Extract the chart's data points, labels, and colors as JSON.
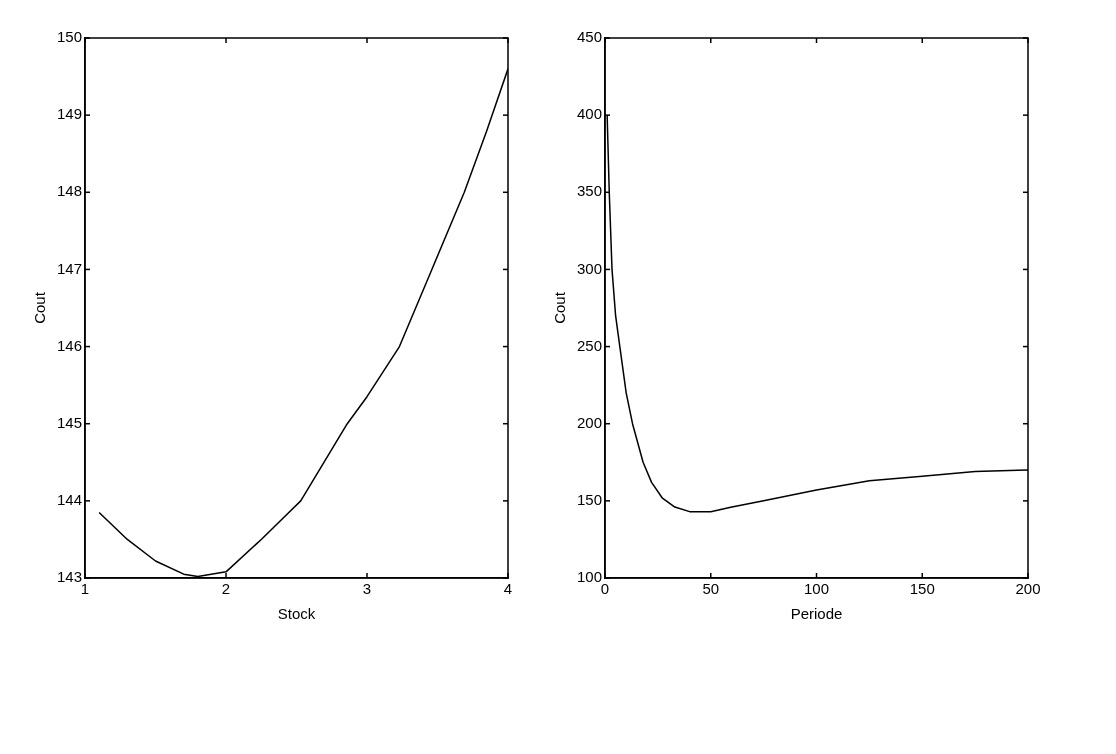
{
  "chart_data": [
    {
      "type": "line",
      "xlabel": "Stock",
      "ylabel": "Cout",
      "xlim": [
        1,
        4
      ],
      "xticks": [
        1,
        2,
        3,
        4
      ],
      "ylim": [
        143,
        150
      ],
      "yticks": [
        143,
        144,
        145,
        146,
        147,
        148,
        149,
        150
      ],
      "grid": false,
      "legend": false,
      "marker": "none",
      "line_style": "solid",
      "series": [
        {
          "color": "#000000",
          "x": [
            1.1,
            1.3,
            1.5,
            1.7,
            1.8,
            2.0,
            2.25,
            2.53,
            2.86,
            3.0,
            3.23,
            3.46,
            3.69,
            3.85,
            4.0
          ],
          "values": [
            143.85,
            143.5,
            143.22,
            143.05,
            143.02,
            143.08,
            143.5,
            144,
            145,
            145.35,
            146,
            147,
            148,
            148.8,
            149.6
          ]
        }
      ]
    },
    {
      "type": "line",
      "xlabel": "Periode",
      "ylabel": "Cout",
      "xlim": [
        0,
        200
      ],
      "xticks": [
        0,
        50,
        100,
        150,
        200
      ],
      "ylim": [
        100,
        450
      ],
      "yticks": [
        100,
        150,
        200,
        250,
        300,
        350,
        400,
        450
      ],
      "grid": false,
      "legend": false,
      "marker": "none",
      "line_style": "solid",
      "series": [
        {
          "color": "#000000",
          "x": [
            1,
            2,
            3.3,
            5,
            7,
            10,
            13,
            18,
            22,
            27,
            33,
            40,
            50,
            60,
            75,
            100,
            125,
            150,
            175,
            200
          ],
          "values": [
            400,
            350,
            300,
            270,
            250,
            220,
            200,
            175,
            162,
            152,
            146,
            143,
            143,
            146,
            150,
            157,
            163,
            166,
            169,
            170
          ]
        }
      ]
    }
  ]
}
